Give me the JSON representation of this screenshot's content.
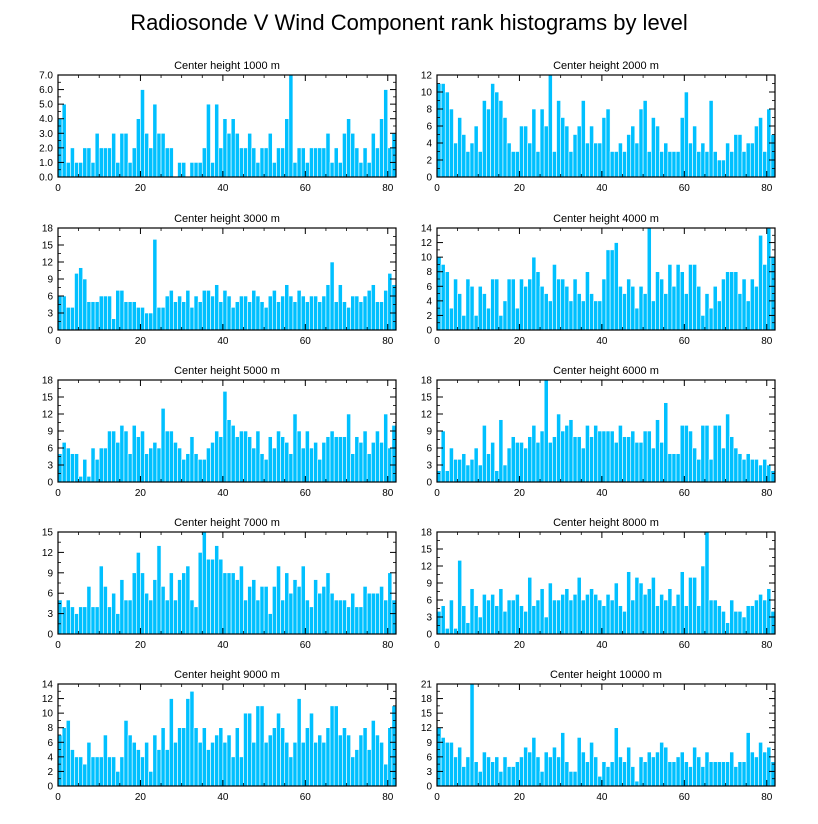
{
  "title": "Radiosonde V Wind Component rank histograms by level",
  "colors": {
    "bar": "#00c0ff",
    "bar_edge": "#ffffff",
    "axis": "#000000"
  },
  "chart_data": [
    {
      "type": "bar",
      "title": "Center height 1000 m",
      "x": {
        "min": 0,
        "max": 82,
        "ticks": [
          0,
          20,
          40,
          60,
          80
        ]
      },
      "ylim": [
        0,
        7
      ],
      "yticks": [
        "0.0",
        "1.0",
        "2.0",
        "3.0",
        "4.0",
        "5.0",
        "6.0",
        "7.0"
      ],
      "values": [
        4,
        5,
        1,
        2,
        1,
        1,
        2,
        2,
        1,
        3,
        2,
        2,
        2,
        3,
        1,
        3,
        3,
        1,
        2,
        4,
        6,
        3,
        2,
        5,
        3,
        3,
        2,
        2,
        0,
        1,
        1,
        0,
        1,
        1,
        1,
        2,
        5,
        1,
        5,
        2,
        4,
        3,
        4,
        3,
        2,
        2,
        3,
        2,
        1,
        2,
        2,
        3,
        1,
        2,
        2,
        4,
        7,
        1,
        2,
        2,
        1,
        2,
        2,
        2,
        2,
        3,
        1,
        2,
        1,
        3,
        4,
        3,
        2,
        1,
        2,
        1,
        3,
        2,
        4,
        6,
        2,
        3
      ]
    },
    {
      "type": "bar",
      "title": "Center height 2000 m",
      "x": {
        "min": 0,
        "max": 82,
        "ticks": [
          0,
          20,
          40,
          60,
          80
        ]
      },
      "ylim": [
        0,
        12
      ],
      "yticks": [
        "0",
        "2",
        "4",
        "6",
        "8",
        "10",
        "12"
      ],
      "values": [
        11,
        11,
        10,
        8,
        4,
        7,
        5,
        3,
        4,
        6,
        3,
        9,
        8,
        11,
        10,
        9,
        7,
        4,
        3,
        3,
        6,
        6,
        4,
        8,
        3,
        8,
        6,
        12,
        3,
        9,
        7,
        6,
        3,
        5,
        6,
        9,
        4,
        6,
        4,
        4,
        7,
        8,
        3,
        3,
        4,
        3,
        5,
        6,
        4,
        8,
        9,
        3,
        7,
        6,
        3,
        4,
        3,
        3,
        3,
        7,
        10,
        4,
        6,
        3,
        4,
        3,
        9,
        3,
        2,
        2,
        4,
        3,
        5,
        5,
        3,
        4,
        4,
        6,
        7,
        3,
        8,
        5
      ]
    },
    {
      "type": "bar",
      "title": "Center height 3000 m",
      "x": {
        "min": 0,
        "max": 82,
        "ticks": [
          0,
          20,
          40,
          60,
          80
        ]
      },
      "ylim": [
        0,
        18
      ],
      "yticks": [
        "0",
        "3",
        "6",
        "9",
        "12",
        "15",
        "18"
      ],
      "values": [
        6,
        6,
        4,
        4,
        10,
        11,
        9,
        5,
        5,
        5,
        6,
        6,
        6,
        2,
        7,
        7,
        5,
        5,
        5,
        4,
        4,
        3,
        3,
        16,
        4,
        4,
        6,
        7,
        5,
        6,
        5,
        7,
        4,
        6,
        5,
        7,
        7,
        6,
        8,
        5,
        7,
        6,
        4,
        5,
        6,
        6,
        5,
        7,
        6,
        5,
        4,
        6,
        7,
        5,
        6,
        8,
        6,
        5,
        7,
        6,
        5,
        6,
        6,
        5,
        6,
        8,
        12,
        5,
        8,
        5,
        4,
        6,
        6,
        5,
        6,
        7,
        8,
        5,
        5,
        7,
        10,
        8
      ]
    },
    {
      "type": "bar",
      "title": "Center height 4000 m",
      "x": {
        "min": 0,
        "max": 82,
        "ticks": [
          0,
          20,
          40,
          60,
          80
        ]
      },
      "ylim": [
        0,
        14
      ],
      "yticks": [
        "0",
        "2",
        "4",
        "6",
        "8",
        "10",
        "12",
        "14"
      ],
      "values": [
        10,
        9,
        8,
        3,
        7,
        5,
        2,
        7,
        6,
        2,
        6,
        5,
        3,
        7,
        7,
        2,
        4,
        7,
        7,
        3,
        7,
        6,
        7,
        10,
        8,
        6,
        5,
        4,
        9,
        7,
        7,
        6,
        4,
        7,
        5,
        4,
        8,
        5,
        4,
        4,
        7,
        11,
        11,
        12,
        6,
        5,
        7,
        6,
        3,
        6,
        5,
        14,
        4,
        8,
        7,
        5,
        9,
        6,
        9,
        8,
        5,
        9,
        9,
        6,
        2,
        5,
        3,
        6,
        4,
        7,
        8,
        8,
        8,
        5,
        7,
        4,
        7,
        6,
        13,
        9,
        14,
        10
      ]
    },
    {
      "type": "bar",
      "title": "Center height 5000 m",
      "x": {
        "min": 0,
        "max": 82,
        "ticks": [
          0,
          20,
          40,
          60,
          80
        ]
      },
      "ylim": [
        0,
        18
      ],
      "yticks": [
        "0",
        "3",
        "6",
        "9",
        "12",
        "15",
        "18"
      ],
      "values": [
        5,
        7,
        6,
        5,
        5,
        1,
        4,
        1,
        6,
        4,
        6,
        6,
        9,
        9,
        7,
        10,
        9,
        5,
        10,
        8,
        9,
        5,
        6,
        7,
        6,
        13,
        9,
        9,
        7,
        6,
        4,
        5,
        8,
        5,
        4,
        4,
        6,
        7,
        9,
        8,
        16,
        11,
        10,
        8,
        9,
        9,
        8,
        6,
        9,
        5,
        4,
        8,
        6,
        9,
        8,
        7,
        5,
        12,
        9,
        6,
        9,
        6,
        7,
        4,
        7,
        8,
        9,
        8,
        8,
        8,
        12,
        5,
        8,
        7,
        9,
        5,
        7,
        9,
        7,
        12,
        6,
        10
      ]
    },
    {
      "type": "bar",
      "title": "Center height 6000 m",
      "x": {
        "min": 0,
        "max": 82,
        "ticks": [
          0,
          20,
          40,
          60,
          80
        ]
      },
      "ylim": [
        0,
        18
      ],
      "yticks": [
        "0",
        "3",
        "6",
        "9",
        "12",
        "15",
        "18"
      ],
      "values": [
        2,
        9,
        2,
        6,
        4,
        4,
        5,
        3,
        4,
        6,
        3,
        10,
        5,
        7,
        2,
        11,
        3,
        6,
        8,
        7,
        7,
        6,
        8,
        10,
        7,
        9,
        18,
        7,
        8,
        12,
        9,
        10,
        11,
        8,
        8,
        6,
        10,
        8,
        10,
        9,
        9,
        9,
        9,
        7,
        10,
        8,
        8,
        9,
        7,
        7,
        9,
        9,
        6,
        11,
        7,
        14,
        5,
        5,
        5,
        10,
        10,
        9,
        6,
        4,
        10,
        10,
        4,
        10,
        10,
        6,
        12,
        8,
        6,
        5,
        4,
        5,
        4,
        4,
        3,
        4,
        3,
        2
      ]
    },
    {
      "type": "bar",
      "title": "Center height 7000 m",
      "x": {
        "min": 0,
        "max": 82,
        "ticks": [
          0,
          20,
          40,
          60,
          80
        ]
      },
      "ylim": [
        0,
        15
      ],
      "yticks": [
        "0",
        "3",
        "6",
        "9",
        "12",
        "15"
      ],
      "values": [
        5,
        4,
        5,
        4,
        3,
        4,
        4,
        7,
        4,
        4,
        10,
        7,
        4,
        6,
        3,
        8,
        5,
        5,
        9,
        12,
        9,
        6,
        5,
        8,
        13,
        7,
        5,
        9,
        5,
        8,
        9,
        10,
        5,
        4,
        12,
        15,
        11,
        11,
        13,
        11,
        9,
        9,
        9,
        8,
        10,
        5,
        7,
        8,
        5,
        7,
        7,
        3,
        7,
        10,
        5,
        9,
        6,
        8,
        7,
        10,
        5,
        4,
        8,
        6,
        7,
        9,
        6,
        5,
        5,
        5,
        4,
        6,
        4,
        4,
        7,
        6,
        6,
        6,
        7,
        5,
        9,
        5
      ]
    },
    {
      "type": "bar",
      "title": "Center height 8000 m",
      "x": {
        "min": 0,
        "max": 82,
        "ticks": [
          0,
          20,
          40,
          60,
          80
        ]
      },
      "ylim": [
        0,
        18
      ],
      "yticks": [
        "0",
        "3",
        "6",
        "9",
        "12",
        "15",
        "18"
      ],
      "values": [
        4,
        5,
        1,
        6,
        1,
        13,
        5,
        2,
        8,
        5,
        3,
        7,
        6,
        7,
        5,
        8,
        4,
        6,
        6,
        7,
        5,
        4,
        10,
        5,
        6,
        8,
        3,
        9,
        6,
        6,
        7,
        8,
        6,
        7,
        10,
        6,
        7,
        8,
        7,
        6,
        5,
        7,
        6,
        9,
        5,
        4,
        11,
        6,
        10,
        9,
        7,
        8,
        10,
        5,
        7,
        6,
        8,
        5,
        7,
        11,
        5,
        10,
        10,
        5,
        12,
        18,
        6,
        6,
        5,
        4,
        2,
        6,
        4,
        4,
        3,
        5,
        5,
        6,
        7,
        6,
        8,
        4
      ]
    },
    {
      "type": "bar",
      "title": "Center height 9000 m",
      "x": {
        "min": 0,
        "max": 82,
        "ticks": [
          0,
          20,
          40,
          60,
          80
        ]
      },
      "ylim": [
        0,
        14
      ],
      "yticks": [
        "0",
        "2",
        "4",
        "6",
        "8",
        "10",
        "12",
        "14"
      ],
      "values": [
        7,
        8,
        9,
        5,
        4,
        4,
        3,
        6,
        4,
        4,
        4,
        7,
        4,
        4,
        2,
        4,
        9,
        7,
        6,
        5,
        4,
        6,
        2,
        7,
        5,
        8,
        5,
        12,
        6,
        8,
        8,
        12,
        13,
        8,
        6,
        8,
        5,
        6,
        7,
        8,
        6,
        7,
        4,
        8,
        4,
        10,
        10,
        6,
        11,
        11,
        6,
        7,
        8,
        10,
        8,
        6,
        4,
        6,
        12,
        6,
        8,
        10,
        6,
        7,
        6,
        8,
        11,
        11,
        7,
        8,
        7,
        4,
        5,
        7,
        8,
        5,
        9,
        7,
        6,
        3,
        8,
        11
      ]
    },
    {
      "type": "bar",
      "title": "Center height 10000 m",
      "x": {
        "min": 0,
        "max": 82,
        "ticks": [
          0,
          20,
          40,
          60,
          80
        ]
      },
      "ylim": [
        0,
        21
      ],
      "yticks": [
        "0",
        "3",
        "6",
        "9",
        "12",
        "15",
        "18",
        "21"
      ],
      "values": [
        12,
        10,
        9,
        9,
        6,
        8,
        4,
        6,
        21,
        5,
        3,
        7,
        6,
        5,
        6,
        3,
        6,
        4,
        4,
        5,
        6,
        8,
        7,
        10,
        6,
        3,
        7,
        6,
        8,
        6,
        11,
        5,
        3,
        3,
        10,
        7,
        5,
        9,
        6,
        2,
        5,
        4,
        5,
        12,
        6,
        5,
        8,
        4,
        1,
        6,
        5,
        7,
        6,
        7,
        9,
        8,
        5,
        5,
        6,
        7,
        5,
        4,
        8,
        6,
        4,
        7,
        5,
        5,
        5,
        5,
        5,
        7,
        4,
        5,
        5,
        11,
        7,
        6,
        9,
        7,
        8,
        5
      ]
    }
  ]
}
